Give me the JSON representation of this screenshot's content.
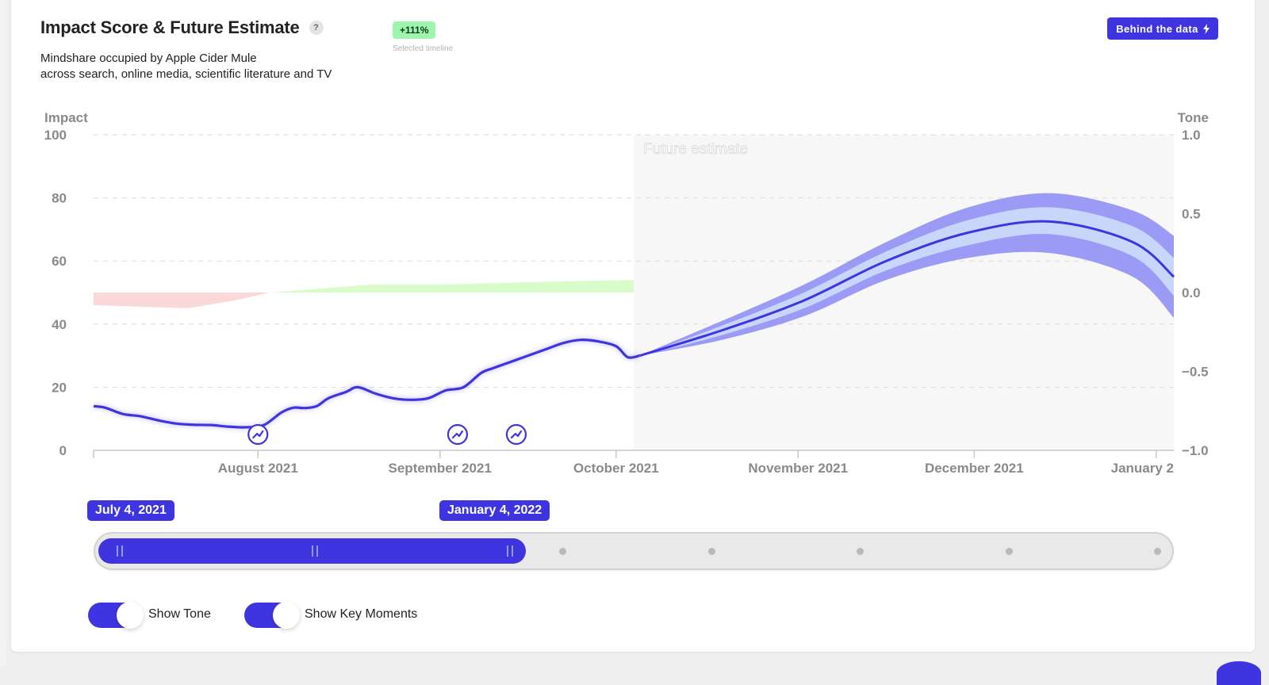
{
  "header": {
    "title": "Impact Score & Future Estimate",
    "help_glyph": "?",
    "subtitle_line1": "Mindshare occupied by Apple Cider Mule",
    "subtitle_line2": "across search, online media, scientific literature and TV",
    "change_badge": "+111%",
    "change_caption": "Selected timeline",
    "behind_button": "Behind the data"
  },
  "colors": {
    "accent": "#3f35e0",
    "badge_green": "#9ef5ad",
    "tone_positive": "#d7fcc8",
    "tone_negative": "#fbd4d4",
    "band_outer": "#9b9af4",
    "band_inner": "#c8d6fb",
    "future_bg": "#f7f7f7"
  },
  "chart_data": {
    "type": "line",
    "title": "Impact Score & Future Estimate",
    "left_axis": {
      "label": "Impact",
      "ylim": [
        0,
        100
      ],
      "ticks": [
        0,
        20,
        40,
        60,
        80,
        100
      ]
    },
    "right_axis": {
      "label": "Tone",
      "ylim": [
        -1.0,
        1.0
      ],
      "ticks": [
        "1.0",
        "0.5",
        "0.0",
        "−0.5",
        "−1.0"
      ]
    },
    "x_axis": {
      "ticks": [
        "August 2021",
        "September 2021",
        "October 2021",
        "November 2021",
        "December 2021",
        "January 2"
      ],
      "range": [
        "2021-07-04",
        "2022-01-04"
      ]
    },
    "future_label": "Future estimate",
    "future_start": "2021-10-04",
    "grid": "dashed horizontal",
    "impact_series": {
      "x": [
        "2021-07-04",
        "2021-07-06",
        "2021-07-09",
        "2021-07-12",
        "2021-07-15",
        "2021-07-18",
        "2021-07-21",
        "2021-07-24",
        "2021-07-27",
        "2021-07-30",
        "2021-08-02",
        "2021-08-05",
        "2021-08-07",
        "2021-08-09",
        "2021-08-11",
        "2021-08-13",
        "2021-08-16",
        "2021-08-18",
        "2021-08-21",
        "2021-08-24",
        "2021-08-27",
        "2021-08-30",
        "2021-09-02",
        "2021-09-05",
        "2021-09-08",
        "2021-09-10",
        "2021-09-13",
        "2021-09-16",
        "2021-09-19",
        "2021-09-22",
        "2021-09-25",
        "2021-09-28",
        "2021-10-01",
        "2021-10-03",
        "2021-10-05"
      ],
      "values": [
        14,
        13.5,
        11.5,
        10.8,
        9.5,
        8.5,
        8.1,
        8.0,
        7.5,
        7.3,
        8.0,
        12.0,
        13.5,
        13.4,
        14.0,
        16.5,
        18.5,
        20.0,
        18.0,
        16.5,
        16.0,
        16.5,
        19.0,
        20.0,
        24.5,
        26.0,
        28.0,
        30.0,
        32.0,
        34.0,
        35.0,
        34.5,
        33.0,
        29.5,
        30.0
      ]
    },
    "tone_series": {
      "x": [
        "2021-07-04",
        "2021-07-12",
        "2021-07-20",
        "2021-07-28",
        "2021-08-03",
        "2021-08-10",
        "2021-08-20",
        "2021-09-01",
        "2021-09-10",
        "2021-09-20",
        "2021-10-04"
      ],
      "values": [
        -0.08,
        -0.09,
        -0.1,
        -0.05,
        0.0,
        0.02,
        0.05,
        0.05,
        0.06,
        0.07,
        0.08
      ]
    },
    "forecast": {
      "x": [
        "2021-10-05",
        "2021-10-19",
        "2021-11-02",
        "2021-11-16",
        "2021-11-30",
        "2021-12-14",
        "2021-12-28",
        "2022-01-04"
      ],
      "mid": [
        30.0,
        38.0,
        47.5,
        60.0,
        69.0,
        72.5,
        66.0,
        55.0
      ],
      "inner_low": [
        30.0,
        36.5,
        45.0,
        57.0,
        65.0,
        68.5,
        61.5,
        49.0
      ],
      "inner_high": [
        30.0,
        39.5,
        50.0,
        63.0,
        73.0,
        77.0,
        71.0,
        61.0
      ],
      "outer_low": [
        30.0,
        35.0,
        42.5,
        54.0,
        61.0,
        62.5,
        55.0,
        42.0
      ],
      "outer_high": [
        30.0,
        41.0,
        52.5,
        66.0,
        77.0,
        81.5,
        76.0,
        68.0
      ]
    },
    "key_moments": [
      "2021-08-01",
      "2021-09-04",
      "2021-09-14"
    ]
  },
  "slider": {
    "start_label": "July 4, 2021",
    "end_label": "January 4, 2022"
  },
  "toggles": {
    "tone_label": "Show Tone",
    "moments_label": "Show Key Moments"
  }
}
